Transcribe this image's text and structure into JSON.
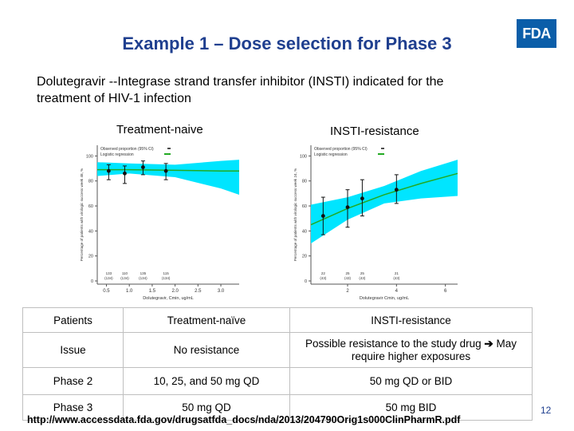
{
  "title": "Example 1 – Dose selection for Phase 3",
  "logo": "FDA",
  "subtitle": "Dolutegravir --Integrase strand transfer inhibitor (INSTI) indicated for the treatment of HIV-1 infection",
  "colors": {
    "title": "#1f3f8f",
    "band": "#00e5ff",
    "line": "#22aa22",
    "logo": "#0b5ea9"
  },
  "plots": {
    "naive": {
      "label": "Treatment-naive",
      "legend_obs": "Observed proportion (95% CI)",
      "legend_log": "Logistic regression",
      "ylabel": "Percentage of patients with virologic success week 48, %",
      "xlabel": "Dolutegravir, Cmin, ug/mL",
      "yticks": [
        "0",
        "20",
        "40",
        "60",
        "80",
        "100"
      ],
      "xticks": [
        "0.5",
        "1.0",
        "1.5",
        "2.0",
        "2.5",
        "3.0"
      ],
      "counts": [
        "133\n(134)",
        "110\n(134)",
        "135\n(134)",
        "115\n(134)"
      ]
    },
    "resist": {
      "label": "INSTI-resistance",
      "legend_obs": "Observed proportion (95% CI)",
      "legend_log": "Logistic regression",
      "ylabel": "Percentage of patients with virologic success week 24, %",
      "xlabel": "Dolutegravir Cmin, ug/mL",
      "yticks": [
        "0",
        "20",
        "40",
        "60",
        "80",
        "100"
      ],
      "xticks": [
        "2",
        "4",
        "6"
      ],
      "counts": [
        "22\n(43)",
        "25\n(43)",
        "25\n(43)",
        "21\n(43)"
      ]
    }
  },
  "chart_data": [
    {
      "type": "scatter",
      "title": "Treatment-naive",
      "xlabel": "Dolutegravir, Cmin, ug/mL",
      "ylabel": "Percentage of patients with virologic success week 48, %",
      "xlim": [
        0.3,
        3.4
      ],
      "ylim": [
        0,
        100
      ],
      "series": [
        {
          "name": "Observed proportion (95% CI)",
          "x": [
            0.55,
            0.9,
            1.3,
            1.8
          ],
          "y": [
            88,
            86,
            91,
            88
          ],
          "lower": [
            81,
            78,
            85,
            81
          ],
          "upper": [
            93,
            92,
            96,
            94
          ]
        },
        {
          "name": "Logistic regression",
          "x": [
            0.3,
            1.0,
            2.0,
            3.0,
            3.4
          ],
          "y": [
            89,
            89,
            88.5,
            88,
            88
          ],
          "lower": [
            84,
            86,
            83,
            74,
            69
          ],
          "upper": [
            95,
            94,
            93,
            96,
            97
          ]
        }
      ]
    },
    {
      "type": "scatter",
      "title": "INSTI-resistance",
      "xlabel": "Dolutegravir Cmin, ug/mL",
      "ylabel": "Percentage of patients with virologic success week 24, %",
      "xlim": [
        0.5,
        6.5
      ],
      "ylim": [
        0,
        100
      ],
      "series": [
        {
          "name": "Observed proportion (95% CI)",
          "x": [
            1.0,
            2.0,
            2.6,
            4.0
          ],
          "y": [
            52,
            59,
            66,
            73
          ],
          "lower": [
            37,
            43,
            52,
            62
          ],
          "upper": [
            67,
            73,
            81,
            85
          ]
        },
        {
          "name": "Logistic regression",
          "x": [
            0.5,
            2.0,
            3.5,
            5.0,
            6.5
          ],
          "y": [
            45,
            58,
            69,
            78,
            86
          ],
          "lower": [
            30,
            49,
            62,
            66,
            68
          ],
          "upper": [
            61,
            67,
            76,
            88,
            97
          ]
        }
      ]
    }
  ],
  "table": {
    "header": [
      "Patients",
      "Treatment-naïve",
      "INSTI-resistance"
    ],
    "issue": {
      "label": "Issue",
      "naive": "No resistance",
      "resist_pre": "Possible resistance to the study drug",
      "resist_post": "May require higher exposures"
    },
    "phase2": [
      "Phase 2",
      "10, 25, and 50 mg QD",
      "50 mg QD or BID"
    ],
    "phase3": [
      "Phase 3",
      "50 mg QD",
      "50 mg BID"
    ]
  },
  "url": "http://www.accessdata.fda.gov/drugsatfda_docs/nda/2013/204790Orig1s000ClinPharmR.pdf",
  "page_number": "12"
}
